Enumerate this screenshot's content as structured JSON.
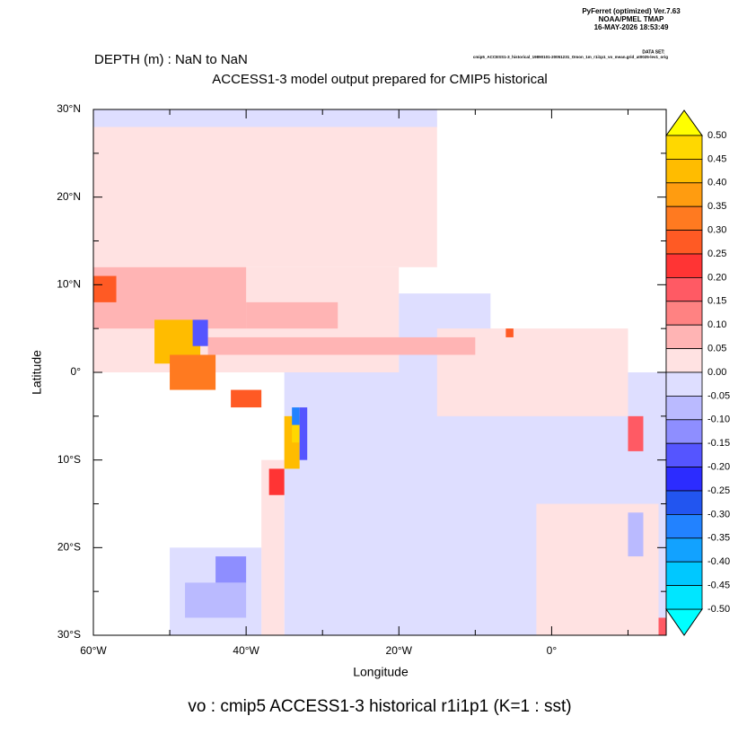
{
  "header": {
    "program": "PyFerret (optimized) Ver.7.63",
    "org": "NOAA/PMEL TMAP",
    "timestamp": "16-MAY-2026 18:53:49",
    "dataset_label": "DATA SET:",
    "dataset": "cmip5_ACCESS1-3_historical_19890101-20051231_Omon_1m_r1i1p1_vo_mean.grid_at0025-lev1_orig"
  },
  "chart_data": {
    "type": "heatmap",
    "title": "DEPTH (m) : NaN to NaN",
    "subtitle": "ACCESS1-3 model output prepared for CMIP5 historical",
    "caption": "vo : cmip5 ACCESS1-3 historical r1i1p1   (K=1 : sst)",
    "xlabel": "Longitude",
    "ylabel": "Latitude",
    "xlim": [
      -60,
      15
    ],
    "ylim": [
      -30,
      30
    ],
    "xticks": [
      {
        "value": -60,
        "label": "60°W"
      },
      {
        "value": -40,
        "label": "40°W"
      },
      {
        "value": -20,
        "label": "20°W"
      },
      {
        "value": 0,
        "label": "0°"
      }
    ],
    "xminor": [
      -50,
      -30,
      -10,
      10
    ],
    "yticks": [
      {
        "value": 30,
        "label": "30°N"
      },
      {
        "value": 20,
        "label": "20°N"
      },
      {
        "value": 10,
        "label": "10°N"
      },
      {
        "value": 0,
        "label": "0°"
      },
      {
        "value": -10,
        "label": "10°S"
      },
      {
        "value": -20,
        "label": "20°S"
      },
      {
        "value": -30,
        "label": "30°S"
      }
    ],
    "yminor": [
      25,
      15,
      5,
      -5,
      -15,
      -25
    ],
    "colorbar": {
      "levels": [
        {
          "value": 0.5,
          "label": "0.50"
        },
        {
          "value": 0.45,
          "label": "0.45"
        },
        {
          "value": 0.4,
          "label": "0.40"
        },
        {
          "value": 0.35,
          "label": "0.35"
        },
        {
          "value": 0.3,
          "label": "0.30"
        },
        {
          "value": 0.25,
          "label": "0.25"
        },
        {
          "value": 0.2,
          "label": "0.20"
        },
        {
          "value": 0.15,
          "label": "0.15"
        },
        {
          "value": 0.1,
          "label": "0.10"
        },
        {
          "value": 0.05,
          "label": "0.05"
        },
        {
          "value": 0,
          "label": "0.00"
        },
        {
          "value": -0.05,
          "label": "-0.05"
        },
        {
          "value": -0.1,
          "label": "-0.10"
        },
        {
          "value": -0.15,
          "label": "-0.15"
        },
        {
          "value": -0.2,
          "label": "-0.20"
        },
        {
          "value": -0.25,
          "label": "-0.25"
        },
        {
          "value": -0.3,
          "label": "-0.30"
        },
        {
          "value": -0.35,
          "label": "-0.35"
        },
        {
          "value": -0.4,
          "label": "-0.40"
        },
        {
          "value": -0.45,
          "label": "-0.45"
        },
        {
          "value": -0.5,
          "label": "-0.50"
        }
      ],
      "colors": [
        "#ffd800",
        "#ffbc00",
        "#ff9c10",
        "#ff7a20",
        "#ff5a24",
        "#ff3434",
        "#ff5a64",
        "#ff8282",
        "#ffb4b4",
        "#ffe2e2",
        "#dedeff",
        "#babaff",
        "#8e8eff",
        "#5555ff",
        "#2c2cff",
        "#2255f0",
        "#2282ff",
        "#12a2ff",
        "#00c8ff",
        "#00e6ff"
      ],
      "over_color": "#ffff00",
      "under_color": "#00ffff"
    },
    "cells": [
      {
        "lon": [
          -60,
          -15
        ],
        "lat": [
          12,
          29
        ],
        "value": 0.02
      },
      {
        "lon": [
          -60,
          -15
        ],
        "lat": [
          28,
          30
        ],
        "value": -0.02
      },
      {
        "lon": [
          -60,
          -20
        ],
        "lat": [
          0,
          12
        ],
        "value": 0.02
      },
      {
        "lon": [
          -20,
          -8
        ],
        "lat": [
          0,
          9
        ],
        "value": -0.02
      },
      {
        "lon": [
          -35,
          15
        ],
        "lat": [
          -30,
          0
        ],
        "value": -0.02
      },
      {
        "lon": [
          -15,
          10
        ],
        "lat": [
          -5,
          5
        ],
        "value": 0.02
      },
      {
        "lon": [
          -2,
          14
        ],
        "lat": [
          -30,
          -15
        ],
        "value": 0.02
      },
      {
        "lon": [
          -38,
          -35
        ],
        "lat": [
          -30,
          -10
        ],
        "value": 0.02
      },
      {
        "lon": [
          -50,
          -38
        ],
        "lat": [
          -30,
          -20
        ],
        "value": -0.02
      },
      {
        "lon": [
          -60,
          -40
        ],
        "lat": [
          5,
          12
        ],
        "value": 0.08
      },
      {
        "lon": [
          -45,
          -10
        ],
        "lat": [
          2,
          4
        ],
        "value": 0.08
      },
      {
        "lon": [
          -40,
          -28
        ],
        "lat": [
          5,
          8
        ],
        "value": 0.08
      },
      {
        "lon": [
          -60,
          -57
        ],
        "lat": [
          8,
          11
        ],
        "value": 0.25
      },
      {
        "lon": [
          -52,
          -46
        ],
        "lat": [
          1,
          6
        ],
        "value": 0.4
      },
      {
        "lon": [
          -50,
          -44
        ],
        "lat": [
          -2,
          2
        ],
        "value": 0.3
      },
      {
        "lon": [
          -47,
          -45
        ],
        "lat": [
          3,
          6
        ],
        "value": -0.2
      },
      {
        "lon": [
          -42,
          -38
        ],
        "lat": [
          -4,
          -2
        ],
        "value": 0.25
      },
      {
        "lon": [
          -35,
          -33
        ],
        "lat": [
          -11,
          -5
        ],
        "value": 0.4
      },
      {
        "lon": [
          -34,
          -33
        ],
        "lat": [
          -8,
          -5
        ],
        "value": 0.45
      },
      {
        "lon": [
          -33,
          -32
        ],
        "lat": [
          -10,
          -4
        ],
        "value": -0.2
      },
      {
        "lon": [
          -34,
          -33
        ],
        "lat": [
          -6,
          -4
        ],
        "value": -0.35
      },
      {
        "lon": [
          -37,
          -35
        ],
        "lat": [
          -14,
          -11
        ],
        "value": 0.2
      },
      {
        "lon": [
          -44,
          -40
        ],
        "lat": [
          -24,
          -21
        ],
        "value": -0.12
      },
      {
        "lon": [
          -48,
          -40
        ],
        "lat": [
          -28,
          -24
        ],
        "value": -0.07
      },
      {
        "lon": [
          -6,
          -5
        ],
        "lat": [
          4,
          5
        ],
        "value": 0.25
      },
      {
        "lon": [
          10,
          12
        ],
        "lat": [
          -9,
          -5
        ],
        "value": 0.15
      },
      {
        "lon": [
          10,
          12
        ],
        "lat": [
          -21,
          -16
        ],
        "value": -0.07
      },
      {
        "lon": [
          14,
          15
        ],
        "lat": [
          -30,
          -28
        ],
        "value": 0.15
      }
    ]
  }
}
